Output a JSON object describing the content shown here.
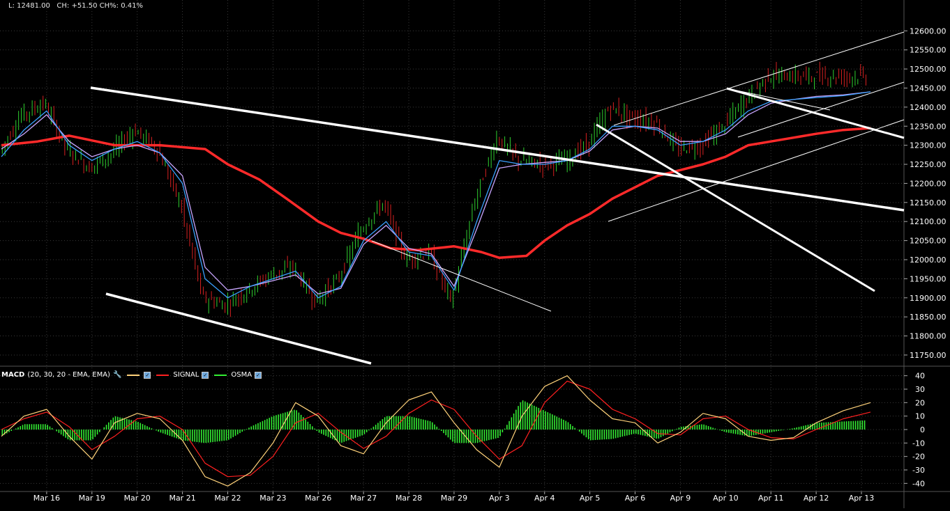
{
  "readout": {
    "low": "L: 12481.00",
    "change": "CH: +51.50",
    "change_pct": "CH%: 0.41%"
  },
  "colors": {
    "background": "#000000",
    "grid": "#3a3a3a",
    "up_bar": "#2fd12f",
    "down_bar": "#d62020",
    "ma_long": "#ff2a2a",
    "ma_fast": "#3aa0ff",
    "ma_mid": "#c9a6ff",
    "macd_line": "#ffd27a",
    "signal_line": "#ff2020",
    "osma": "#33ee33",
    "trendline": "#ffffff"
  },
  "macd_legend": {
    "name": "MACD",
    "params": "(20, 30, 20 - EMA, EMA)",
    "signal": "SIGNAL",
    "osma": "OSMA"
  },
  "chart_data": [
    {
      "type": "line",
      "subtype": "ohlc-bars",
      "x_labels": [
        "Mar 16",
        "Mar 19",
        "Mar 20",
        "Mar 21",
        "Mar 22",
        "Mar 23",
        "Mar 26",
        "Mar 27",
        "Mar 28",
        "Mar 29",
        "Apr 3",
        "Apr 4",
        "Apr 5",
        "Apr 6",
        "Apr 9",
        "Apr 10",
        "Apr 11",
        "Apr 12",
        "Apr 13"
      ],
      "y_ticks": [
        "12600.00",
        "12550.00",
        "12500.00",
        "12450.00",
        "12400.00",
        "12350.00",
        "12300.00",
        "12250.00",
        "12200.00",
        "12150.00",
        "12100.00",
        "12050.00",
        "12000.00",
        "11950.00",
        "11900.00",
        "11850.00",
        "11800.00",
        "11750.00"
      ],
      "ylim": [
        11728,
        12648
      ],
      "x_range": [
        0,
        19.2
      ],
      "series": [
        {
          "role": "price",
          "x": [
            0,
            0.5,
            1,
            1.5,
            2,
            2.5,
            3,
            3.5,
            4,
            4.5,
            5,
            5.5,
            6,
            6.5,
            7,
            7.5,
            8,
            8.5,
            9,
            9.5,
            10,
            10.5,
            11,
            11.5,
            12,
            12.5,
            13,
            13.5,
            14,
            14.5,
            15,
            15.5,
            16,
            16.5,
            17,
            17.5,
            18,
            18.5,
            19.2
          ],
          "y": [
            12280,
            12380,
            12410,
            12290,
            12240,
            12280,
            12340,
            12290,
            12150,
            11900,
            11880,
            11920,
            11960,
            11980,
            11890,
            11950,
            12080,
            12150,
            12000,
            12020,
            11890,
            12150,
            12320,
            12260,
            12250,
            12260,
            12300,
            12400,
            12370,
            12360,
            12290,
            12300,
            12350,
            12420,
            12481,
            12481,
            12481,
            12481,
            12481
          ]
        },
        {
          "role": "ma_long",
          "x": [
            0,
            0.8,
            1.5,
            2.5,
            3.5,
            4.5,
            5,
            5.7,
            6.3,
            7,
            7.5,
            8,
            8.6,
            9.2,
            10,
            10.6,
            11,
            11.6,
            12,
            12.5,
            13,
            13.5,
            14,
            14.5,
            15,
            15.5,
            16,
            16.5,
            17,
            17.5,
            18,
            18.6,
            19.2
          ],
          "y": [
            12300,
            12310,
            12325,
            12300,
            12300,
            12290,
            12250,
            12210,
            12160,
            12100,
            12070,
            12055,
            12030,
            12025,
            12035,
            12020,
            12005,
            12010,
            12050,
            12090,
            12120,
            12160,
            12190,
            12220,
            12235,
            12250,
            12270,
            12300,
            12310,
            12320,
            12330,
            12340,
            12345
          ]
        },
        {
          "role": "ma_fast",
          "x": [
            0,
            0.5,
            1,
            1.5,
            2,
            2.5,
            3,
            3.5,
            4,
            4.5,
            5,
            5.5,
            6,
            6.5,
            7,
            7.5,
            8,
            8.5,
            9,
            9.5,
            10,
            10.5,
            11,
            11.5,
            12,
            12.5,
            13,
            13.5,
            14,
            14.5,
            15,
            15.5,
            16,
            16.5,
            17,
            17.5,
            18,
            18.6,
            19.2
          ],
          "y": [
            12270,
            12340,
            12390,
            12300,
            12260,
            12290,
            12310,
            12280,
            12200,
            11950,
            11900,
            11930,
            11950,
            11970,
            11900,
            11930,
            12050,
            12100,
            12020,
            12010,
            11920,
            12100,
            12260,
            12250,
            12250,
            12260,
            12290,
            12350,
            12350,
            12340,
            12300,
            12310,
            12340,
            12390,
            12415,
            12420,
            12425,
            12430,
            12440
          ]
        },
        {
          "role": "ma_mid",
          "x": [
            0,
            0.5,
            1,
            1.5,
            2,
            2.5,
            3,
            3.5,
            4,
            4.5,
            5,
            5.5,
            6,
            6.5,
            7,
            7.5,
            8,
            8.5,
            9,
            9.5,
            10,
            10.5,
            11,
            11.5,
            12,
            12.5,
            13,
            13.5,
            14,
            14.5,
            15,
            15.5,
            16,
            16.5,
            17,
            17.5,
            18,
            18.6,
            19.2
          ],
          "y": [
            12290,
            12330,
            12380,
            12310,
            12270,
            12290,
            12300,
            12280,
            12220,
            11980,
            11920,
            11930,
            11945,
            11960,
            11910,
            11925,
            12040,
            12090,
            12030,
            12015,
            11930,
            12080,
            12240,
            12250,
            12255,
            12260,
            12285,
            12340,
            12350,
            12345,
            12310,
            12310,
            12330,
            12380,
            12410,
            12420,
            12428,
            12432,
            12440
          ]
        }
      ]
    },
    {
      "type": "line",
      "subtype": "macd",
      "title": "MACD",
      "y_ticks": [
        "40",
        "30",
        "20",
        "10",
        "0",
        "-10",
        "-20",
        "-30",
        "-40"
      ],
      "ylim": [
        -45,
        45
      ],
      "x_range": [
        0,
        19.2
      ],
      "series": [
        {
          "role": "macd_line",
          "x": [
            0,
            0.5,
            1,
            1.5,
            2,
            2.5,
            3,
            3.5,
            4,
            4.5,
            5,
            5.5,
            6,
            6.5,
            7,
            7.5,
            8,
            8.5,
            9,
            9.5,
            10,
            10.5,
            11,
            11.5,
            12,
            12.5,
            13,
            13.5,
            14,
            14.5,
            15,
            15.5,
            16,
            16.5,
            17,
            17.5,
            18,
            18.6,
            19.2
          ],
          "y": [
            -5,
            10,
            15,
            -5,
            -22,
            5,
            12,
            8,
            -8,
            -35,
            -42,
            -32,
            -10,
            20,
            10,
            -12,
            -18,
            5,
            22,
            28,
            5,
            -15,
            -28,
            10,
            32,
            40,
            22,
            8,
            5,
            -10,
            -2,
            12,
            8,
            -5,
            -8,
            -6,
            5,
            14,
            20
          ]
        },
        {
          "role": "signal_line",
          "x": [
            0,
            0.5,
            1,
            1.5,
            2,
            2.5,
            3,
            3.5,
            4,
            4.5,
            5,
            5.5,
            6,
            6.5,
            7,
            7.5,
            8,
            8.5,
            9,
            9.5,
            10,
            10.5,
            11,
            11.5,
            12,
            12.5,
            13,
            13.5,
            14,
            14.5,
            15,
            15.5,
            16,
            16.5,
            17,
            17.5,
            18,
            18.6,
            19.2
          ],
          "y": [
            0,
            8,
            13,
            2,
            -15,
            -5,
            8,
            10,
            0,
            -25,
            -35,
            -34,
            -20,
            5,
            12,
            -2,
            -14,
            -5,
            12,
            22,
            15,
            -5,
            -22,
            -12,
            20,
            36,
            30,
            15,
            8,
            -3,
            -4,
            8,
            10,
            0,
            -6,
            -7,
            0,
            8,
            13
          ]
        },
        {
          "role": "osma",
          "x": [
            0,
            0.5,
            1,
            1.5,
            2,
            2.5,
            3,
            3.5,
            4,
            4.5,
            5,
            5.5,
            6,
            6.5,
            7,
            7.5,
            8,
            8.5,
            9,
            9.5,
            10,
            10.5,
            11,
            11.5,
            12,
            12.5,
            13,
            13.5,
            14,
            14.5,
            15,
            15.5,
            16,
            16.5,
            17,
            17.5,
            18,
            18.6,
            19.2
          ],
          "y": [
            -5,
            4,
            4,
            -8,
            -8,
            10,
            6,
            -2,
            -8,
            -10,
            -8,
            2,
            10,
            15,
            -2,
            -10,
            -4,
            10,
            10,
            6,
            -10,
            -10,
            -6,
            22,
            14,
            6,
            -8,
            -7,
            -3,
            -7,
            2,
            4,
            -2,
            -5,
            -2,
            1,
            5,
            6,
            7
          ]
        }
      ]
    }
  ]
}
